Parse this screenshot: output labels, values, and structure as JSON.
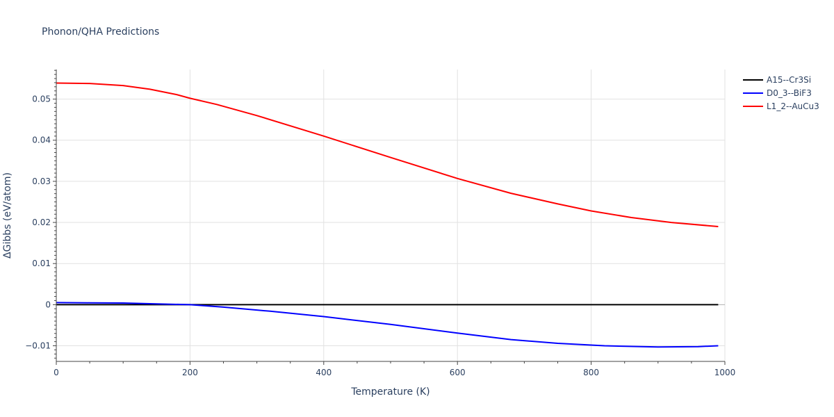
{
  "chart_data": {
    "type": "line",
    "title": "Phonon/QHA Predictions",
    "xlabel": "Temperature (K)",
    "ylabel": "ΔGibbs (eV/atom)",
    "xlim": [
      0,
      1000
    ],
    "ylim": [
      -0.0138,
      0.0572
    ],
    "x_ticks": [
      0,
      200,
      400,
      600,
      800,
      1000
    ],
    "x_tick_labels": [
      "0",
      "200",
      "400",
      "600",
      "800",
      "1000"
    ],
    "y_ticks": [
      -0.01,
      0,
      0.01,
      0.02,
      0.03,
      0.04,
      0.05
    ],
    "y_tick_labels": [
      "−0.01",
      "0",
      "0.01",
      "0.02",
      "0.03",
      "0.04",
      "0.05"
    ],
    "grid": true,
    "legend_position": "top-right",
    "series": [
      {
        "name": "A15--Cr3Si",
        "color": "#000000",
        "x": [
          0,
          100,
          200,
          300,
          400,
          500,
          600,
          700,
          800,
          900,
          990
        ],
        "y": [
          0,
          0,
          0,
          0,
          0,
          0,
          0,
          0,
          0,
          0,
          0
        ]
      },
      {
        "name": "D0_3--BiF3",
        "color": "#0000ff",
        "x": [
          0,
          50,
          100,
          150,
          200,
          250,
          300,
          320,
          400,
          500,
          600,
          680,
          750,
          820,
          900,
          960,
          990
        ],
        "y": [
          0.0005,
          0.00045,
          0.0004,
          0.0002,
          0.0,
          -0.0006,
          -0.0013,
          -0.0016,
          -0.0029,
          -0.0048,
          -0.0069,
          -0.0085,
          -0.0094,
          -0.01,
          -0.0103,
          -0.0102,
          -0.01
        ]
      },
      {
        "name": "L1_2--AuCu3",
        "color": "#ff0000",
        "x": [
          0,
          50,
          100,
          140,
          180,
          200,
          240,
          300,
          400,
          500,
          600,
          680,
          750,
          800,
          860,
          920,
          990
        ],
        "y": [
          0.0539,
          0.0538,
          0.0533,
          0.0524,
          0.0511,
          0.0502,
          0.0487,
          0.046,
          0.041,
          0.0358,
          0.0307,
          0.0271,
          0.0245,
          0.0228,
          0.0212,
          0.02,
          0.019
        ]
      }
    ]
  }
}
